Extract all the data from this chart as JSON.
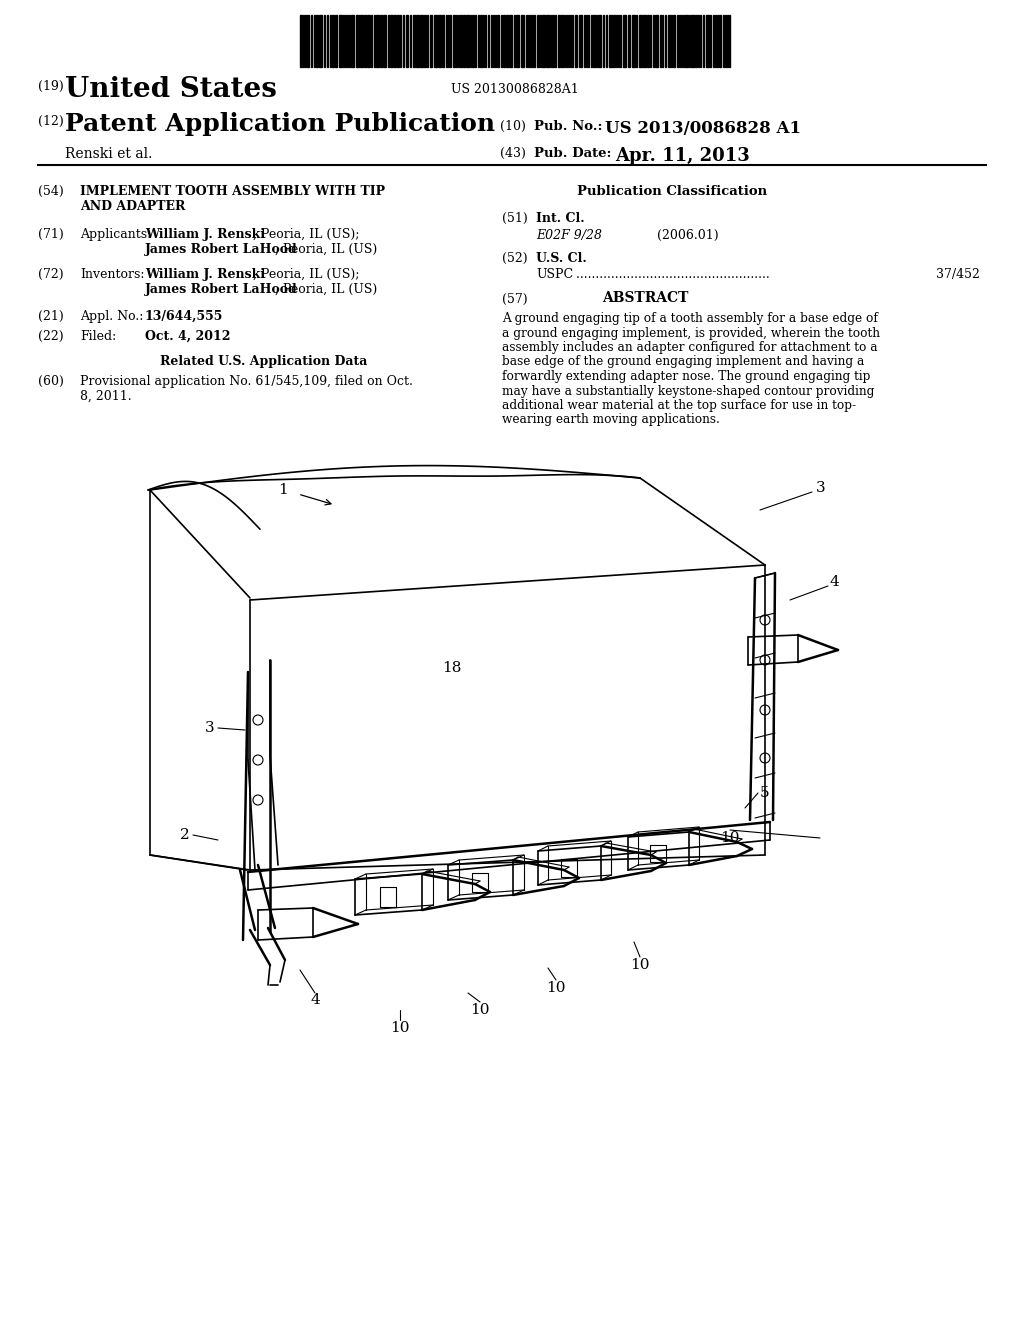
{
  "background_color": "#ffffff",
  "barcode_text": "US 20130086828A1",
  "num19": "(19)",
  "united_states": "United States",
  "num12": "(12)",
  "patent_app_pub": "Patent Application Publication",
  "num10": "(10)",
  "pub_no_label": "Pub. No.:",
  "pub_no_value": "US 2013/0086828 A1",
  "inventor_line": "Renski et al.",
  "num43": "(43)",
  "pub_date_label": "Pub. Date:",
  "pub_date_value": "Apr. 11, 2013",
  "num54": "(54)",
  "title_line1": "IMPLEMENT TOOTH ASSEMBLY WITH TIP",
  "title_line2": "AND ADAPTER",
  "pub_class_label": "Publication Classification",
  "num51": "(51)",
  "int_cl_label": "Int. Cl.",
  "int_cl_code": "E02F 9/28",
  "int_cl_year": "(2006.01)",
  "num52": "(52)",
  "us_cl_label": "U.S. Cl.",
  "uspc_label": "USPC",
  "uspc_value": "37/452",
  "num71": "(71)",
  "applicants_label": "Applicants:",
  "applicant1_bold": "William J. Renski",
  "applicant1_rest": ", Peoria, IL (US);",
  "applicant2_bold": "James Robert LaHood",
  "applicant2_rest": ", Peoria, IL (US)",
  "num72": "(72)",
  "inventors_label": "Inventors:",
  "inventor1_bold": "William J. Renski",
  "inventor1_rest": ", Peoria, IL (US);",
  "inventor2_bold": "James Robert LaHood",
  "inventor2_rest": ", Peoria, IL (US)",
  "num21": "(21)",
  "appl_no_label": "Appl. No.:",
  "appl_no_value": "13/644,555",
  "num22": "(22)",
  "filed_label": "Filed:",
  "filed_value": "Oct. 4, 2012",
  "related_data_label": "Related U.S. Application Data",
  "num60": "(60)",
  "prov_line1": "Provisional application No. 61/545,109, filed on Oct.",
  "prov_line2": "8, 2011.",
  "abstract_num": "(57)",
  "abstract_label": "ABSTRACT",
  "abstract_lines": [
    "A ground engaging tip of a tooth assembly for a base edge of",
    "a ground engaging implement, is provided, wherein the tooth",
    "assembly includes an adapter configured for attachment to a",
    "base edge of the ground engaging implement and having a",
    "forwardly extending adapter nose. The ground engaging tip",
    "may have a substantially keystone-shaped contour providing",
    "additional wear material at the top surface for use in top-",
    "wearing earth moving applications."
  ]
}
